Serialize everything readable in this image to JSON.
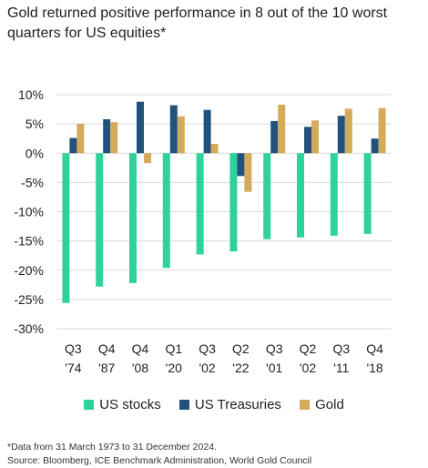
{
  "chart_data": {
    "type": "bar",
    "title": "Gold returned positive performance in 8 out of the 10 worst quarters for US equities*",
    "categories": [
      {
        "q": "Q3",
        "y": "'74"
      },
      {
        "q": "Q4",
        "y": "'87"
      },
      {
        "q": "Q4",
        "y": "'08"
      },
      {
        "q": "Q1",
        "y": "'20"
      },
      {
        "q": "Q3",
        "y": "'02"
      },
      {
        "q": "Q2",
        "y": "'22"
      },
      {
        "q": "Q3",
        "y": "'01"
      },
      {
        "q": "Q2",
        "y": "'02"
      },
      {
        "q": "Q3",
        "y": "'11"
      },
      {
        "q": "Q4",
        "y": "'18"
      }
    ],
    "series": [
      {
        "name": "US stocks",
        "color": "#2ed39b",
        "values": [
          -25.6,
          -22.8,
          -22.2,
          -19.6,
          -17.3,
          -16.8,
          -14.7,
          -14.4,
          -14.1,
          -13.8
        ]
      },
      {
        "name": "US Treasuries",
        "color": "#22527c",
        "values": [
          2.6,
          5.8,
          8.8,
          8.2,
          7.4,
          -3.9,
          5.5,
          4.5,
          6.4,
          2.5
        ]
      },
      {
        "name": "Gold",
        "color": "#d4ab5b",
        "values": [
          5.0,
          5.3,
          -1.7,
          6.3,
          1.6,
          -6.6,
          8.3,
          5.6,
          7.6,
          7.7
        ]
      }
    ],
    "ylim": [
      -30,
      10
    ],
    "yticks": [
      "10%",
      "5%",
      "0%",
      "-5%",
      "-10%",
      "-15%",
      "-20%",
      "-25%",
      "-30%"
    ],
    "ytick_values": [
      10,
      5,
      0,
      -5,
      -10,
      -15,
      -20,
      -25,
      -30
    ],
    "grid": true,
    "legend_position": "bottom-center"
  },
  "footnote": {
    "line1": "*Data from 31 March 1973 to 31 December 2024.",
    "line2": "Source: Bloomberg, ICE Benchmark Administration, World Gold Council"
  }
}
